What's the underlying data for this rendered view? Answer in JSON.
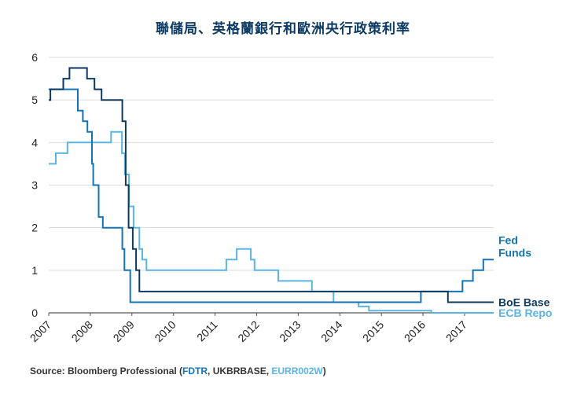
{
  "chart_data": {
    "type": "line",
    "title": "聯儲局、英格蘭銀行和歐洲央行政策利率",
    "xlabel": "",
    "ylabel": "",
    "xlim": [
      2007.0,
      2017.7
    ],
    "ylim": [
      0,
      6
    ],
    "grid": true,
    "legend": "right-end labels",
    "y_ticks": [
      "0",
      "1",
      "2",
      "3",
      "4",
      "5",
      "6"
    ],
    "x_ticks": [
      "2007",
      "2008",
      "2009",
      "2010",
      "2011",
      "2012",
      "2013",
      "2014",
      "2015",
      "2016",
      "2017"
    ],
    "series": [
      {
        "name": "BoE Base",
        "label_lines": [
          "BoE Base"
        ],
        "color": "#0d3a5e",
        "points": [
          [
            2007.0,
            5.0
          ],
          [
            2007.04,
            5.25
          ],
          [
            2007.35,
            5.5
          ],
          [
            2007.5,
            5.75
          ],
          [
            2007.92,
            5.5
          ],
          [
            2008.1,
            5.25
          ],
          [
            2008.27,
            5.0
          ],
          [
            2008.77,
            4.5
          ],
          [
            2008.85,
            3.0
          ],
          [
            2008.92,
            2.0
          ],
          [
            2009.02,
            1.5
          ],
          [
            2009.1,
            1.0
          ],
          [
            2009.18,
            0.5
          ],
          [
            2016.6,
            0.25
          ],
          [
            2017.7,
            0.25
          ]
        ]
      },
      {
        "name": "Fed Funds",
        "label_lines": [
          "Fed",
          "Funds"
        ],
        "color": "#1273b5",
        "points": [
          [
            2007.0,
            5.25
          ],
          [
            2007.7,
            4.75
          ],
          [
            2007.82,
            4.5
          ],
          [
            2007.93,
            4.25
          ],
          [
            2008.04,
            3.5
          ],
          [
            2008.07,
            3.0
          ],
          [
            2008.2,
            2.25
          ],
          [
            2008.3,
            2.0
          ],
          [
            2008.77,
            1.5
          ],
          [
            2008.82,
            1.0
          ],
          [
            2008.96,
            0.25
          ],
          [
            2015.95,
            0.5
          ],
          [
            2016.95,
            0.75
          ],
          [
            2017.2,
            1.0
          ],
          [
            2017.45,
            1.25
          ],
          [
            2017.7,
            1.25
          ]
        ]
      },
      {
        "name": "ECB Repo",
        "label_lines": [
          "ECB Repo"
        ],
        "color": "#5bb4e2",
        "points": [
          [
            2007.0,
            3.5
          ],
          [
            2007.17,
            3.75
          ],
          [
            2007.45,
            4.0
          ],
          [
            2008.5,
            4.25
          ],
          [
            2008.76,
            3.75
          ],
          [
            2008.83,
            3.25
          ],
          [
            2008.93,
            2.5
          ],
          [
            2009.04,
            2.0
          ],
          [
            2009.18,
            1.5
          ],
          [
            2009.25,
            1.25
          ],
          [
            2009.35,
            1.0
          ],
          [
            2011.27,
            1.25
          ],
          [
            2011.52,
            1.5
          ],
          [
            2011.86,
            1.25
          ],
          [
            2011.95,
            1.0
          ],
          [
            2012.52,
            0.75
          ],
          [
            2013.33,
            0.5
          ],
          [
            2013.85,
            0.25
          ],
          [
            2014.45,
            0.15
          ],
          [
            2014.7,
            0.05
          ],
          [
            2016.2,
            0.0
          ],
          [
            2017.7,
            0.0
          ]
        ]
      }
    ]
  },
  "source": {
    "prefix": "Source: Bloomberg Professional (",
    "fdtr": "FDTR",
    "sep1": ", UKBRBASE, ",
    "eur": "EURR002W",
    "suffix": ")",
    "fdtr_color": "#1273b5",
    "eur_color": "#5bb4e2"
  }
}
